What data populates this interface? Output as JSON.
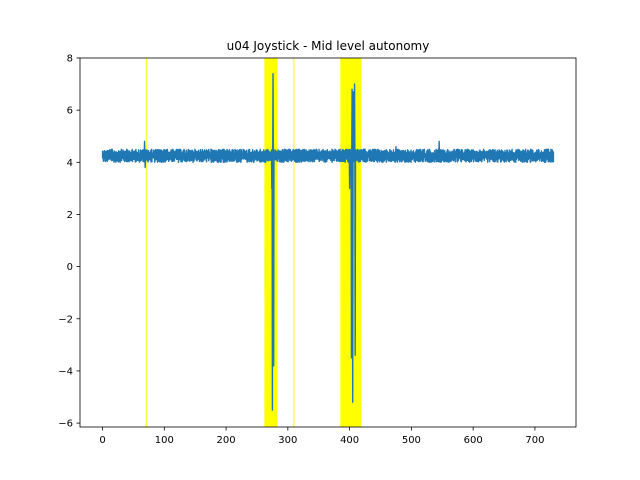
{
  "chart_data": {
    "type": "line",
    "title": "u04 Joystick - Mid level autonomy",
    "xlabel": "",
    "ylabel": "",
    "xlim": [
      -36.5,
      766.5
    ],
    "ylim": [
      -6.15,
      8.0
    ],
    "xticks": [
      0,
      100,
      200,
      300,
      400,
      500,
      600,
      700
    ],
    "yticks": [
      -6,
      -4,
      -2,
      0,
      2,
      4,
      6,
      8
    ],
    "grid": false,
    "legend": "none",
    "colors": {
      "line": "#1f77b4",
      "highlight": "#ffff00"
    },
    "highlight_spans": [
      {
        "x0": 70,
        "x1": 71
      },
      {
        "x0": 262,
        "x1": 283
      },
      {
        "x0": 309,
        "x1": 310
      },
      {
        "x0": 385,
        "x1": 419
      }
    ],
    "series": [
      {
        "name": "",
        "baseline": 4.25,
        "band": [
          4.0,
          4.5
        ],
        "x_range": [
          0,
          730
        ],
        "features": [
          {
            "x": 68,
            "y": 4.8
          },
          {
            "x": 69,
            "y": 3.8
          },
          {
            "x": 272,
            "y": 4.3
          },
          {
            "x": 274,
            "y": 3.0
          },
          {
            "x": 275,
            "y": -5.5
          },
          {
            "x": 276,
            "y": 7.4
          },
          {
            "x": 277,
            "y": -3.8
          },
          {
            "x": 278,
            "y": 4.2
          },
          {
            "x": 398,
            "y": 4.0
          },
          {
            "x": 400,
            "y": 3.0
          },
          {
            "x": 403,
            "y": -3.5
          },
          {
            "x": 404,
            "y": 6.8
          },
          {
            "x": 405,
            "y": -5.2
          },
          {
            "x": 406,
            "y": 6.7
          },
          {
            "x": 408,
            "y": 7.0
          },
          {
            "x": 409,
            "y": -3.4
          },
          {
            "x": 411,
            "y": 4.4
          },
          {
            "x": 475,
            "y": 4.6
          },
          {
            "x": 545,
            "y": 4.8
          }
        ]
      }
    ]
  }
}
